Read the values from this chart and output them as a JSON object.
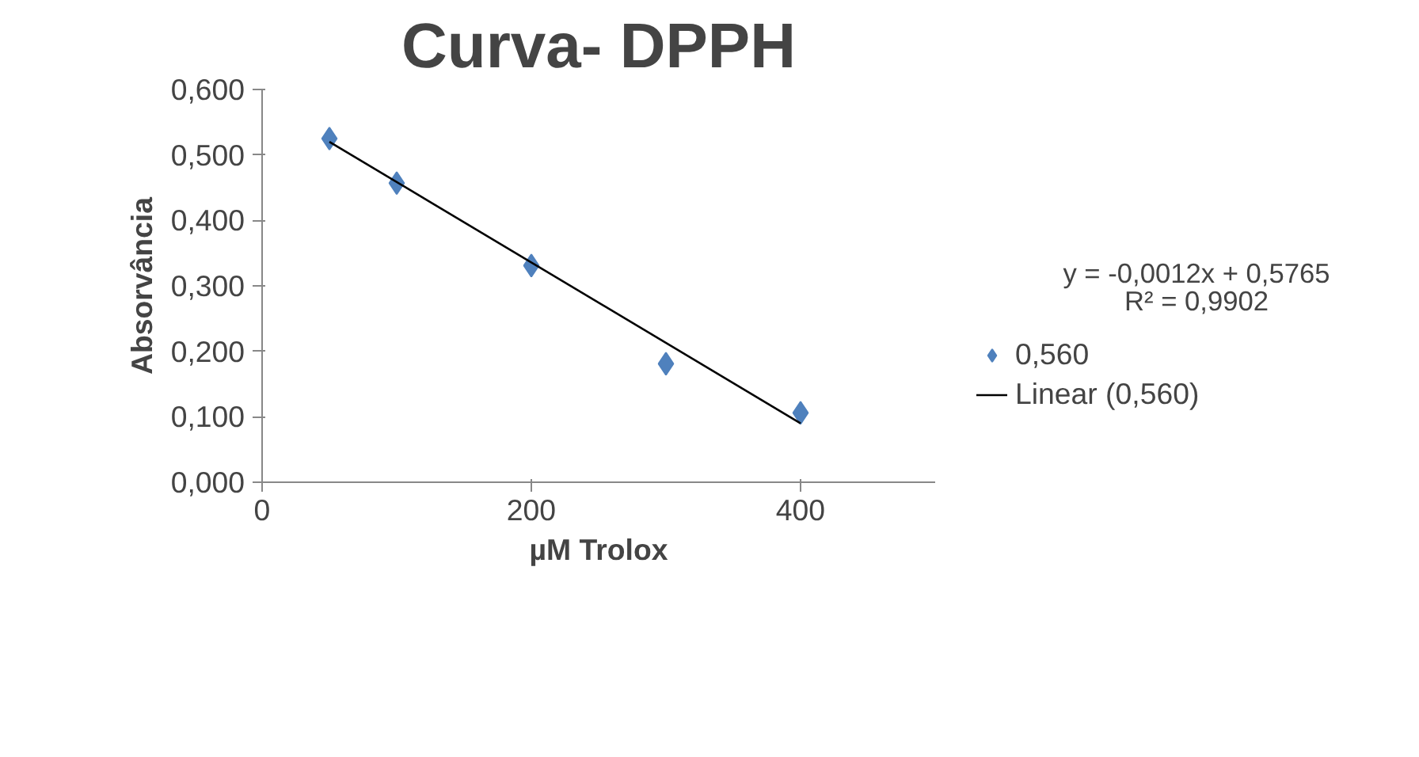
{
  "chart_data": {
    "type": "scatter",
    "title": "Curva- DPPH",
    "xlabel": "µM Trolox",
    "ylabel": "Absorvância",
    "series": [
      {
        "name": "0,560",
        "color": "#4f81bd",
        "marker": "diamond",
        "x": [
          50,
          100,
          200,
          300,
          400
        ],
        "values": [
          0.525,
          0.457,
          0.331,
          0.181,
          0.106
        ]
      },
      {
        "name": "Linear (0,560)",
        "type": "line",
        "color": "#000000",
        "line_style": "solid",
        "x": [
          50,
          400
        ],
        "values": [
          0.52,
          0.09
        ]
      }
    ],
    "xlim": [
      0,
      500
    ],
    "xticks": [
      0,
      200,
      400
    ],
    "ylim": [
      0,
      0.6
    ],
    "yticks": [
      {
        "value": 0,
        "label": "0,000"
      },
      {
        "value": 0.1,
        "label": "0,100"
      },
      {
        "value": 0.2,
        "label": "0,200"
      },
      {
        "value": 0.3,
        "label": "0,300"
      },
      {
        "value": 0.4,
        "label": "0,400"
      },
      {
        "value": 0.5,
        "label": "0,500"
      },
      {
        "value": 0.6,
        "label": "0,600"
      }
    ],
    "grid": false,
    "legend": "right",
    "annotations": [
      "y = -0,0012x + 0,5765",
      "R² = 0,9902"
    ]
  }
}
